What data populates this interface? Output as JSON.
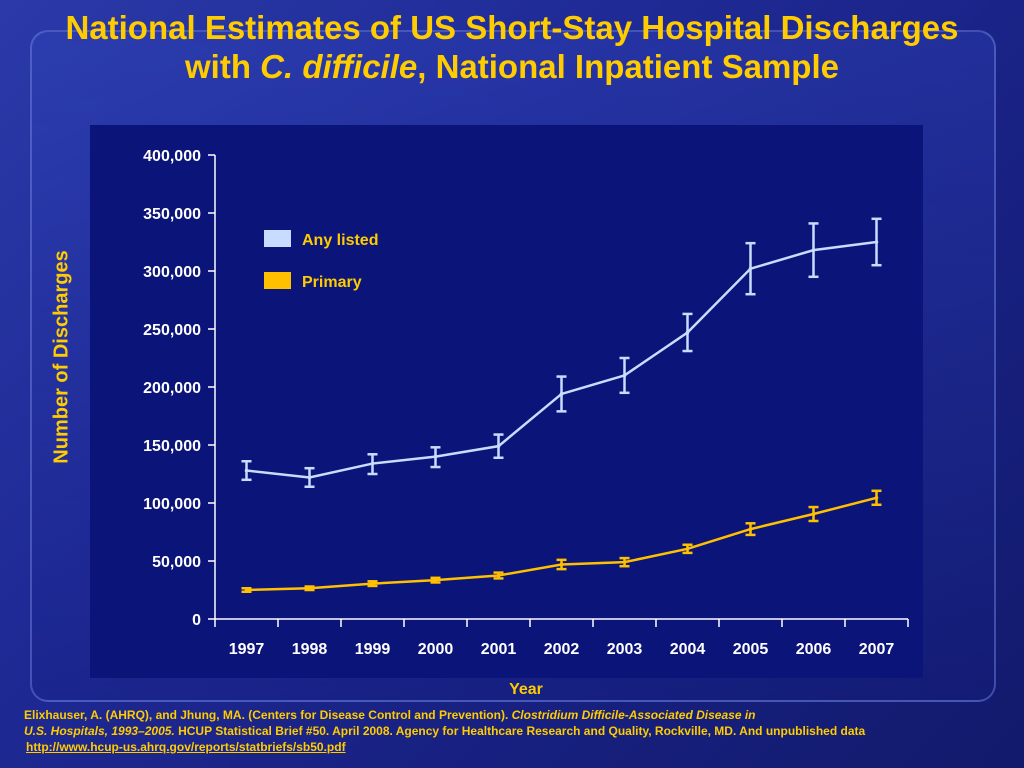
{
  "slide": {
    "title_part1": "National Estimates of US Short-Stay Hospital Discharges with ",
    "title_italic": "C. difficile",
    "title_part2": ", National Inpatient Sample",
    "citation_line1_plain": "Elixhauser, A. (AHRQ), and Jhung, MA. (Centers for Disease Control and Prevention). ",
    "citation_line1_italic": "Clostridium Difficile-Associated Disease in",
    "citation_line2_italic": "U.S. Hospitals, 1993–2005.",
    "citation_line2_plain": " HCUP Statistical Brief #50. April 2008. Agency for Healthcare Research and Quality, Rockville, MD. And unpublished data",
    "citation_link": "http://www.hcup-us.ahrq.gov/reports/statbriefs/sb50.pdf"
  },
  "chart_data": {
    "type": "line",
    "title": "National Estimates of US Short-Stay Hospital Discharges with C. difficile, National Inpatient Sample",
    "xlabel": "Year",
    "ylabel": "Number of Discharges",
    "categories": [
      "1997",
      "1998",
      "1999",
      "2000",
      "2001",
      "2002",
      "2003",
      "2004",
      "2005",
      "2006",
      "2007"
    ],
    "ylim": [
      0,
      400000
    ],
    "yticks": [
      0,
      50000,
      100000,
      150000,
      200000,
      250000,
      300000,
      350000,
      400000
    ],
    "ytick_labels": [
      "0",
      "50,000",
      "100,000",
      "150,000",
      "200,000",
      "250,000",
      "300,000",
      "350,000",
      "400,000"
    ],
    "grid": false,
    "legend_position": "top-left",
    "series": [
      {
        "name": "Any listed",
        "color": "#c8dcff",
        "values": [
          128000,
          122000,
          134000,
          140000,
          149000,
          194000,
          210000,
          247000,
          302000,
          318000,
          325000
        ],
        "error_low": [
          120000,
          114000,
          125000,
          131000,
          139000,
          179000,
          195000,
          231000,
          280000,
          295000,
          305000
        ],
        "error_high": [
          136000,
          130000,
          142000,
          148000,
          159000,
          209000,
          225000,
          263000,
          324000,
          341000,
          345000
        ]
      },
      {
        "name": "Primary",
        "color": "#ffc000",
        "values": [
          25000,
          26500,
          30500,
          33500,
          37500,
          47000,
          49000,
          60500,
          77500,
          90500,
          104500
        ],
        "error_low": [
          23500,
          25000,
          28500,
          31500,
          35000,
          43000,
          45500,
          57000,
          72500,
          84500,
          98500
        ],
        "error_high": [
          26500,
          28000,
          32500,
          35500,
          40000,
          51000,
          52500,
          64000,
          82500,
          96500,
          110500
        ]
      }
    ]
  }
}
